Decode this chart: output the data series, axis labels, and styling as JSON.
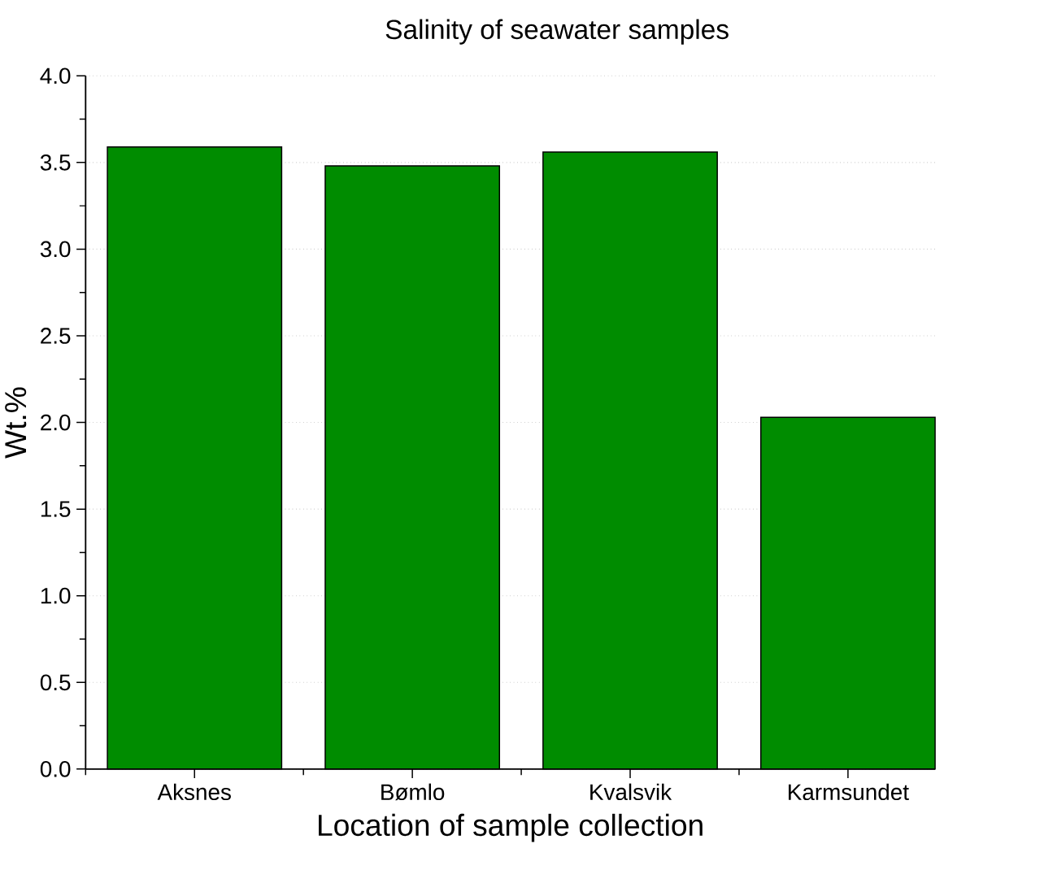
{
  "chart_data": {
    "type": "bar",
    "title": "Salinity of seawater samples",
    "xlabel": "Location of sample collection",
    "ylabel": "Wt.%",
    "categories": [
      "Aksnes",
      "Bømlo",
      "Kvalsvik",
      "Karmsundet"
    ],
    "values": [
      3.59,
      3.48,
      3.56,
      2.03
    ],
    "color": "#008c00",
    "ylim": [
      0,
      4.0
    ],
    "yticks": [
      {
        "value": 0,
        "label": "0.0"
      },
      {
        "value": 0.5,
        "label": "0.5"
      },
      {
        "value": 1,
        "label": "1.0"
      },
      {
        "value": 1.5,
        "label": "1.5"
      },
      {
        "value": 2,
        "label": "2.0"
      },
      {
        "value": 2.5,
        "label": "2.5"
      },
      {
        "value": 3,
        "label": "3.0"
      },
      {
        "value": 3.5,
        "label": "3.5"
      },
      {
        "value": 4,
        "label": "4.0"
      }
    ],
    "grid": "y"
  }
}
